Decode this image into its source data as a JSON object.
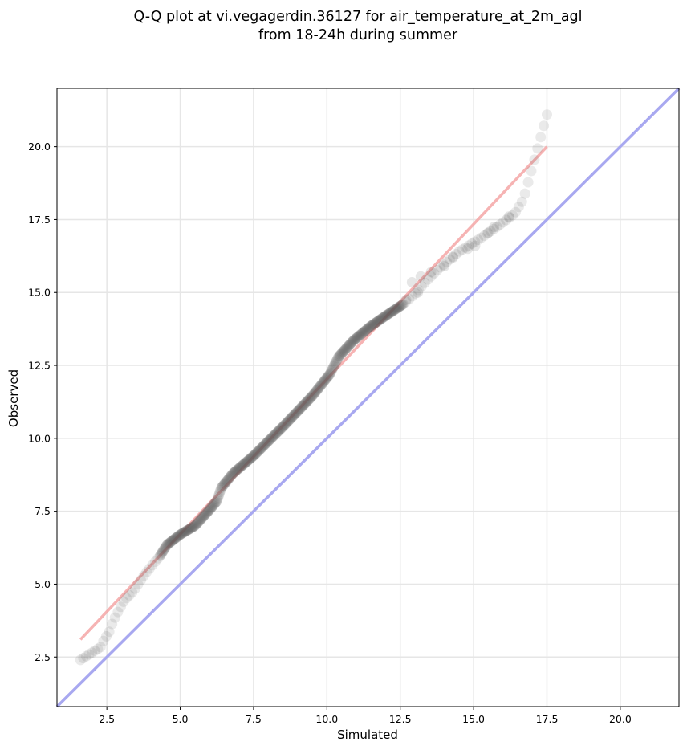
{
  "chart_data": {
    "type": "scatter",
    "title_line1": "Q-Q plot at vi.vegagerdin.36127 for air_temperature_at_2m_agl",
    "title_line2": "from 18-24h during summer",
    "xlabel": "Simulated",
    "ylabel": "Observed",
    "xlim": [
      0.8,
      22.0
    ],
    "ylim": [
      0.8,
      22.0
    ],
    "xticks": [
      2.5,
      5.0,
      7.5,
      10.0,
      12.5,
      15.0,
      17.5,
      20.0
    ],
    "yticks": [
      2.5,
      5.0,
      7.5,
      10.0,
      12.5,
      15.0,
      17.5,
      20.0
    ],
    "xtick_labels": [
      "2.5",
      "5.0",
      "7.5",
      "10.0",
      "12.5",
      "15.0",
      "17.5",
      "20.0"
    ],
    "ytick_labels": [
      "2.5",
      "5.0",
      "7.5",
      "10.0",
      "12.5",
      "15.0",
      "17.5",
      "20.0"
    ],
    "grid": true,
    "point_color": "#555555",
    "fit_line": {
      "color": "#f4a6a6",
      "x": [
        1.6,
        17.5
      ],
      "y": [
        3.1,
        20.0
      ]
    },
    "identity_line": {
      "color": "#a8a8f0",
      "x": [
        0.8,
        22.0
      ],
      "y": [
        0.8,
        22.0
      ]
    },
    "anchor_points": [
      [
        1.6,
        2.4
      ],
      [
        2.3,
        2.85
      ],
      [
        2.35,
        3.0
      ],
      [
        2.6,
        3.4
      ],
      [
        2.7,
        3.7
      ],
      [
        2.85,
        4.0
      ],
      [
        3.1,
        4.45
      ],
      [
        3.4,
        4.75
      ],
      [
        3.8,
        5.35
      ],
      [
        4.3,
        5.95
      ],
      [
        4.55,
        6.35
      ],
      [
        5.0,
        6.7
      ],
      [
        5.5,
        7.0
      ],
      [
        6.0,
        7.55
      ],
      [
        6.25,
        7.85
      ],
      [
        6.4,
        8.3
      ],
      [
        6.8,
        8.8
      ],
      [
        7.5,
        9.4
      ],
      [
        8.5,
        10.4
      ],
      [
        9.5,
        11.45
      ],
      [
        10.1,
        12.2
      ],
      [
        10.4,
        12.8
      ],
      [
        10.9,
        13.35
      ],
      [
        11.5,
        13.85
      ],
      [
        12.0,
        14.2
      ],
      [
        12.6,
        14.6
      ],
      [
        13.0,
        14.95
      ],
      [
        13.4,
        15.4
      ],
      [
        13.8,
        15.8
      ],
      [
        14.5,
        16.4
      ],
      [
        15.3,
        16.9
      ],
      [
        16.0,
        17.4
      ],
      [
        16.4,
        17.7
      ],
      [
        16.7,
        18.2
      ],
      [
        17.5,
        21.1
      ]
    ],
    "outlier_points": [
      [
        12.9,
        15.35
      ],
      [
        13.2,
        15.55
      ],
      [
        13.55,
        15.7
      ],
      [
        14.0,
        15.9
      ],
      [
        14.3,
        16.2
      ],
      [
        14.8,
        16.5
      ],
      [
        15.05,
        16.6
      ],
      [
        15.5,
        17.05
      ],
      [
        15.7,
        17.25
      ],
      [
        16.2,
        17.6
      ],
      [
        12.7,
        14.75
      ],
      [
        13.1,
        15.0
      ]
    ],
    "n_points": 460
  }
}
